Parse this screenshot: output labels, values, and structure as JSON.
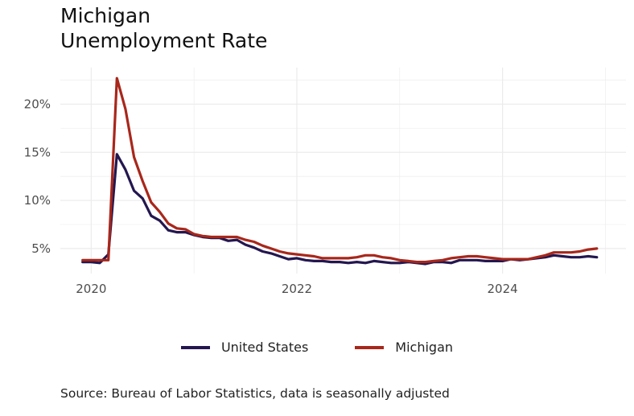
{
  "title_lines": [
    "Michigan",
    "Unemployment Rate"
  ],
  "source": "Source: Bureau of Labor Statistics, data is seasonally adjusted",
  "colors": {
    "us": "#24174f",
    "mi": "#a8271b",
    "grid": "#ebebeb",
    "axis_text": "#4d4d4d"
  },
  "chart_data": {
    "type": "line",
    "title": "Michigan Unemployment Rate",
    "xlabel": "",
    "ylabel": "",
    "x_ticks": [
      {
        "label": "2020",
        "value": 2020
      },
      {
        "label": "2022",
        "value": 2022
      },
      {
        "label": "2024",
        "value": 2024
      }
    ],
    "y_ticks": [
      {
        "label": "5%",
        "value": 5
      },
      {
        "label": "10%",
        "value": 10
      },
      {
        "label": "15%",
        "value": 15
      },
      {
        "label": "20%",
        "value": 20
      }
    ],
    "xlim": [
      2019.7,
      2025.2
    ],
    "ylim": [
      2.4,
      23.8
    ],
    "legend": "bottom",
    "series": [
      {
        "name": "United States",
        "key": "us",
        "points": [
          [
            2019.917,
            3.6
          ],
          [
            2020.0,
            3.6
          ],
          [
            2020.083,
            3.5
          ],
          [
            2020.167,
            4.4
          ],
          [
            2020.25,
            14.8
          ],
          [
            2020.333,
            13.2
          ],
          [
            2020.417,
            11.0
          ],
          [
            2020.5,
            10.2
          ],
          [
            2020.583,
            8.4
          ],
          [
            2020.667,
            7.9
          ],
          [
            2020.75,
            6.9
          ],
          [
            2020.833,
            6.7
          ],
          [
            2020.917,
            6.7
          ],
          [
            2021.0,
            6.4
          ],
          [
            2021.083,
            6.2
          ],
          [
            2021.167,
            6.1
          ],
          [
            2021.25,
            6.1
          ],
          [
            2021.333,
            5.8
          ],
          [
            2021.417,
            5.9
          ],
          [
            2021.5,
            5.4
          ],
          [
            2021.583,
            5.1
          ],
          [
            2021.667,
            4.7
          ],
          [
            2021.75,
            4.5
          ],
          [
            2021.833,
            4.2
          ],
          [
            2021.917,
            3.9
          ],
          [
            2022.0,
            4.0
          ],
          [
            2022.083,
            3.8
          ],
          [
            2022.167,
            3.7
          ],
          [
            2022.25,
            3.7
          ],
          [
            2022.333,
            3.6
          ],
          [
            2022.417,
            3.6
          ],
          [
            2022.5,
            3.5
          ],
          [
            2022.583,
            3.6
          ],
          [
            2022.667,
            3.5
          ],
          [
            2022.75,
            3.7
          ],
          [
            2022.833,
            3.6
          ],
          [
            2022.917,
            3.5
          ],
          [
            2023.0,
            3.5
          ],
          [
            2023.083,
            3.6
          ],
          [
            2023.167,
            3.5
          ],
          [
            2023.25,
            3.4
          ],
          [
            2023.333,
            3.6
          ],
          [
            2023.417,
            3.6
          ],
          [
            2023.5,
            3.5
          ],
          [
            2023.583,
            3.8
          ],
          [
            2023.667,
            3.8
          ],
          [
            2023.75,
            3.8
          ],
          [
            2023.833,
            3.7
          ],
          [
            2023.917,
            3.7
          ],
          [
            2024.0,
            3.7
          ],
          [
            2024.083,
            3.9
          ],
          [
            2024.167,
            3.8
          ],
          [
            2024.25,
            3.9
          ],
          [
            2024.333,
            4.0
          ],
          [
            2024.417,
            4.1
          ],
          [
            2024.5,
            4.3
          ],
          [
            2024.583,
            4.2
          ],
          [
            2024.667,
            4.1
          ],
          [
            2024.75,
            4.1
          ],
          [
            2024.833,
            4.2
          ],
          [
            2024.917,
            4.1
          ]
        ]
      },
      {
        "name": "Michigan",
        "key": "mi",
        "points": [
          [
            2019.917,
            3.8
          ],
          [
            2020.0,
            3.8
          ],
          [
            2020.083,
            3.8
          ],
          [
            2020.167,
            3.8
          ],
          [
            2020.25,
            22.7
          ],
          [
            2020.333,
            19.5
          ],
          [
            2020.417,
            14.5
          ],
          [
            2020.5,
            12.0
          ],
          [
            2020.583,
            9.8
          ],
          [
            2020.667,
            8.8
          ],
          [
            2020.75,
            7.6
          ],
          [
            2020.833,
            7.1
          ],
          [
            2020.917,
            7.0
          ],
          [
            2021.0,
            6.5
          ],
          [
            2021.083,
            6.3
          ],
          [
            2021.167,
            6.2
          ],
          [
            2021.25,
            6.2
          ],
          [
            2021.333,
            6.2
          ],
          [
            2021.417,
            6.2
          ],
          [
            2021.5,
            5.9
          ],
          [
            2021.583,
            5.7
          ],
          [
            2021.667,
            5.3
          ],
          [
            2021.75,
            5.0
          ],
          [
            2021.833,
            4.7
          ],
          [
            2021.917,
            4.5
          ],
          [
            2022.0,
            4.4
          ],
          [
            2022.083,
            4.3
          ],
          [
            2022.167,
            4.2
          ],
          [
            2022.25,
            4.0
          ],
          [
            2022.333,
            4.0
          ],
          [
            2022.417,
            4.0
          ],
          [
            2022.5,
            4.0
          ],
          [
            2022.583,
            4.1
          ],
          [
            2022.667,
            4.3
          ],
          [
            2022.75,
            4.3
          ],
          [
            2022.833,
            4.1
          ],
          [
            2022.917,
            4.0
          ],
          [
            2023.0,
            3.8
          ],
          [
            2023.083,
            3.7
          ],
          [
            2023.167,
            3.6
          ],
          [
            2023.25,
            3.6
          ],
          [
            2023.333,
            3.7
          ],
          [
            2023.417,
            3.8
          ],
          [
            2023.5,
            4.0
          ],
          [
            2023.583,
            4.1
          ],
          [
            2023.667,
            4.2
          ],
          [
            2023.75,
            4.2
          ],
          [
            2023.833,
            4.1
          ],
          [
            2023.917,
            4.0
          ],
          [
            2024.0,
            3.9
          ],
          [
            2024.083,
            3.9
          ],
          [
            2024.167,
            3.9
          ],
          [
            2024.25,
            3.9
          ],
          [
            2024.333,
            4.1
          ],
          [
            2024.417,
            4.3
          ],
          [
            2024.5,
            4.6
          ],
          [
            2024.583,
            4.6
          ],
          [
            2024.667,
            4.6
          ],
          [
            2024.75,
            4.7
          ],
          [
            2024.833,
            4.9
          ],
          [
            2024.917,
            5.0
          ]
        ]
      }
    ]
  }
}
